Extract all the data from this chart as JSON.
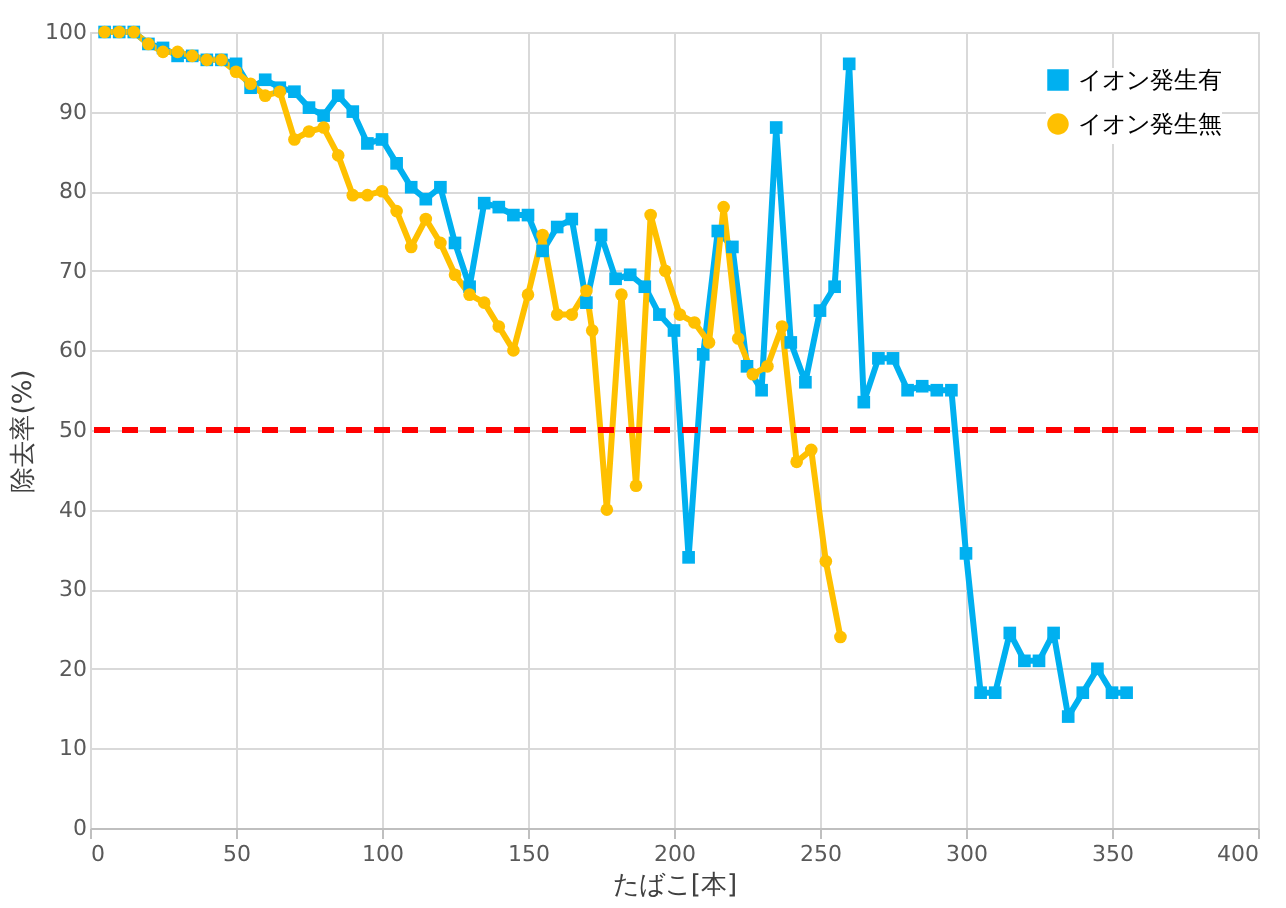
{
  "chart_data": {
    "type": "line",
    "xlabel": "たばこ[本]",
    "ylabel": "除去率(%)",
    "xlim": [
      0,
      400
    ],
    "xticks": [
      0,
      50,
      100,
      150,
      200,
      250,
      300,
      350,
      400
    ],
    "ylim": [
      0,
      100
    ],
    "yticks": [
      0,
      10,
      20,
      30,
      40,
      50,
      60,
      70,
      80,
      90,
      100
    ],
    "grid": true,
    "legend": "top right",
    "line_style": "solid",
    "series": [
      {
        "name": "イオン発生有",
        "color": "#00b0f0",
        "marker": "square",
        "x": [
          5,
          10,
          15,
          20,
          25,
          30,
          35,
          40,
          45,
          50,
          55,
          60,
          65,
          70,
          75,
          80,
          85,
          90,
          95,
          100,
          105,
          110,
          115,
          120,
          125,
          130,
          135,
          140,
          145,
          150,
          155,
          160,
          165,
          170,
          175,
          180,
          185,
          190,
          195,
          200,
          205,
          210,
          215,
          220,
          225,
          230,
          235,
          240,
          245,
          250,
          255,
          260,
          265,
          270,
          275,
          280,
          285,
          290,
          295,
          300,
          305,
          310,
          315,
          320,
          325,
          330,
          335,
          340,
          345,
          350,
          355
        ],
        "values": [
          100,
          100,
          100,
          98.5,
          98,
          97,
          97,
          96.5,
          96.5,
          96,
          93,
          94,
          93,
          92.5,
          90.5,
          89.5,
          92,
          90,
          86,
          86.5,
          83.5,
          80.5,
          79,
          80.5,
          73.5,
          68,
          78.5,
          78,
          77,
          77,
          72.5,
          75.5,
          76.5,
          66,
          74.5,
          69,
          69.5,
          68,
          64.5,
          62.5,
          34,
          59.5,
          75,
          73,
          58,
          55,
          88,
          61,
          56,
          65,
          68,
          96,
          53.5,
          59,
          59,
          55,
          55.5,
          55,
          55,
          34.5,
          17,
          17,
          24.5,
          21,
          21,
          24.5,
          14,
          17,
          20,
          17,
          17
        ]
      },
      {
        "name": "イオン発生無",
        "color": "#ffc000",
        "marker": "circle",
        "x": [
          5,
          10,
          15,
          20,
          25,
          30,
          35,
          40,
          45,
          50,
          55,
          60,
          65,
          70,
          75,
          80,
          85,
          90,
          95,
          100,
          105,
          110,
          115,
          120,
          125,
          130,
          135,
          140,
          145,
          150,
          155,
          160,
          165,
          170,
          172,
          177,
          182,
          187,
          192,
          197,
          202,
          207,
          212,
          217,
          222,
          227,
          232,
          237,
          242,
          247,
          252,
          257
        ],
        "values": [
          100,
          100,
          100,
          98.5,
          97.5,
          97.5,
          97,
          96.5,
          96.5,
          95,
          93.5,
          92,
          92.5,
          86.5,
          87.5,
          88,
          84.5,
          79.5,
          79.5,
          80,
          77.5,
          73,
          76.5,
          73.5,
          69.5,
          67,
          66,
          63,
          60,
          67,
          74.5,
          64.5,
          64.5,
          67.5,
          62.5,
          40,
          67,
          43,
          77,
          70,
          64.5,
          63.5,
          61,
          78,
          61.5,
          57,
          58,
          63,
          46,
          47.5,
          33.5,
          24
        ]
      }
    ],
    "ref_lines": [
      {
        "axis": "y",
        "value": 50,
        "color": "#ff0000",
        "line_style": "dashed"
      }
    ]
  }
}
